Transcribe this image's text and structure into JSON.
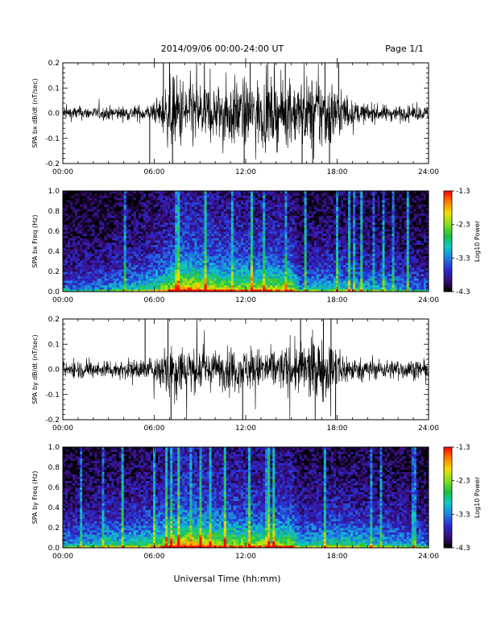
{
  "header": {
    "title": "2014/09/06  00:00-24:00 UT",
    "page": "Page 1/1"
  },
  "xlabel": "Universal Time (hh:mm)",
  "chart_data": [
    {
      "type": "line",
      "ylabel": "SPA bx dB/dt (nT/sec)",
      "xlim": [
        0,
        24
      ],
      "ylim": [
        -0.2,
        0.2
      ],
      "xticks": [
        "00:00",
        "06:00",
        "12:00",
        "18:00",
        "24:00"
      ],
      "yticks": [
        "0.2",
        "0.1",
        "0.0",
        "-0.1",
        "-0.2"
      ],
      "envelope": {
        "hours": [
          0,
          1,
          2,
          3,
          4,
          5,
          6,
          6.5,
          7,
          8,
          9,
          10,
          11,
          12,
          13,
          14,
          15,
          16,
          17,
          18,
          19,
          20,
          21,
          22,
          23,
          24
        ],
        "amplitude": [
          0.03,
          0.03,
          0.025,
          0.03,
          0.03,
          0.035,
          0.04,
          0.08,
          0.15,
          0.16,
          0.14,
          0.12,
          0.15,
          0.14,
          0.15,
          0.14,
          0.13,
          0.15,
          0.17,
          0.12,
          0.05,
          0.04,
          0.035,
          0.035,
          0.03,
          0.03
        ]
      },
      "spikes": [
        {
          "hour": 5.7,
          "value": -0.2
        },
        {
          "hour": 6.6,
          "value": 0.2
        },
        {
          "hour": 7.0,
          "value": 0.2
        },
        {
          "hour": 7.2,
          "value": -0.2
        },
        {
          "hour": 11.9,
          "value": -0.2
        },
        {
          "hour": 12.3,
          "value": 0.2
        },
        {
          "hour": 14.6,
          "value": 0.2
        },
        {
          "hour": 15.7,
          "value": -0.2
        },
        {
          "hour": 16.4,
          "value": -0.2
        },
        {
          "hour": 17.2,
          "value": 0.2
        },
        {
          "hour": 17.5,
          "value": -0.2
        },
        {
          "hour": 18.1,
          "value": 0.2
        }
      ]
    },
    {
      "type": "heatmap",
      "ylabel": "SPA bx Freq (Hz)",
      "xlim": [
        0,
        24
      ],
      "ylim": [
        0,
        1.0
      ],
      "xticks": [
        "00:00",
        "06:00",
        "12:00",
        "18:00",
        "24:00"
      ],
      "yticks": [
        "1.0",
        "0.8",
        "0.6",
        "0.4",
        "0.2",
        "0.0"
      ],
      "colorbar": {
        "label": "Log10 Power",
        "range": [
          -4.3,
          -1.3
        ],
        "ticks": [
          "-1.3",
          "-2.3",
          "-3.3",
          "-4.3"
        ],
        "colors": [
          "#000000",
          "#3a0d7a",
          "#2b2bd4",
          "#1f80e0",
          "#10c8c8",
          "#20c040",
          "#80e020",
          "#f0e000",
          "#ff8000",
          "#ff0000"
        ]
      },
      "activity": {
        "hours": [
          0,
          2,
          4,
          5,
          6,
          7,
          8,
          10,
          12,
          14,
          15,
          15.6,
          16,
          18,
          20,
          22,
          24
        ],
        "level": [
          0.2,
          0.2,
          0.3,
          0.35,
          0.4,
          0.55,
          0.7,
          0.6,
          0.55,
          0.55,
          0.55,
          0.25,
          0.3,
          0.35,
          0.3,
          0.25,
          0.2
        ]
      }
    },
    {
      "type": "line",
      "ylabel": "SPA by dB/dt (nT/sec)",
      "xlim": [
        0,
        24
      ],
      "ylim": [
        -0.2,
        0.2
      ],
      "xticks": [
        "00:00",
        "06:00",
        "12:00",
        "18:00",
        "24:00"
      ],
      "yticks": [
        "0.2",
        "0.1",
        "0.0",
        "-0.1",
        "-0.2"
      ],
      "envelope": {
        "hours": [
          0,
          1,
          2,
          3,
          4,
          5,
          6,
          6.5,
          7,
          8,
          9,
          10,
          11,
          12,
          13,
          14,
          15,
          16,
          17,
          18,
          19,
          20,
          21,
          22,
          23,
          24
        ],
        "amplitude": [
          0.035,
          0.04,
          0.035,
          0.04,
          0.04,
          0.045,
          0.05,
          0.09,
          0.14,
          0.11,
          0.09,
          0.08,
          0.09,
          0.09,
          0.09,
          0.09,
          0.1,
          0.12,
          0.13,
          0.1,
          0.05,
          0.045,
          0.04,
          0.045,
          0.04,
          0.035
        ]
      },
      "spikes": [
        {
          "hour": 5.4,
          "value": 0.2
        },
        {
          "hour": 6.9,
          "value": 0.2
        },
        {
          "hour": 7.1,
          "value": -0.2
        },
        {
          "hour": 11.8,
          "value": -0.2
        },
        {
          "hour": 15.6,
          "value": 0.2
        },
        {
          "hour": 17.1,
          "value": 0.2
        },
        {
          "hour": 17.6,
          "value": 0.2
        },
        {
          "hour": 17.9,
          "value": -0.2
        }
      ]
    },
    {
      "type": "heatmap",
      "ylabel": "SPA by Freq (Hz)",
      "xlim": [
        0,
        24
      ],
      "ylim": [
        0,
        1.0
      ],
      "xticks": [
        "00:00",
        "06:00",
        "12:00",
        "18:00",
        "24:00"
      ],
      "yticks": [
        "1.0",
        "0.8",
        "0.6",
        "0.4",
        "0.2",
        "0.0"
      ],
      "colorbar": {
        "label": "Log10 Power",
        "range": [
          -4.3,
          -1.3
        ],
        "ticks": [
          "-1.3",
          "-2.3",
          "-3.3",
          "-4.3"
        ],
        "colors": [
          "#000000",
          "#3a0d7a",
          "#2b2bd4",
          "#1f80e0",
          "#10c8c8",
          "#20c040",
          "#80e020",
          "#f0e000",
          "#ff8000",
          "#ff0000"
        ]
      },
      "activity": {
        "hours": [
          0,
          2,
          3,
          4,
          5,
          6,
          7,
          8,
          10,
          12,
          14,
          15,
          15.6,
          16,
          18,
          20,
          22,
          24
        ],
        "level": [
          0.25,
          0.3,
          0.4,
          0.35,
          0.4,
          0.45,
          0.6,
          0.7,
          0.6,
          0.55,
          0.55,
          0.55,
          0.3,
          0.35,
          0.4,
          0.35,
          0.3,
          0.25
        ]
      }
    }
  ]
}
